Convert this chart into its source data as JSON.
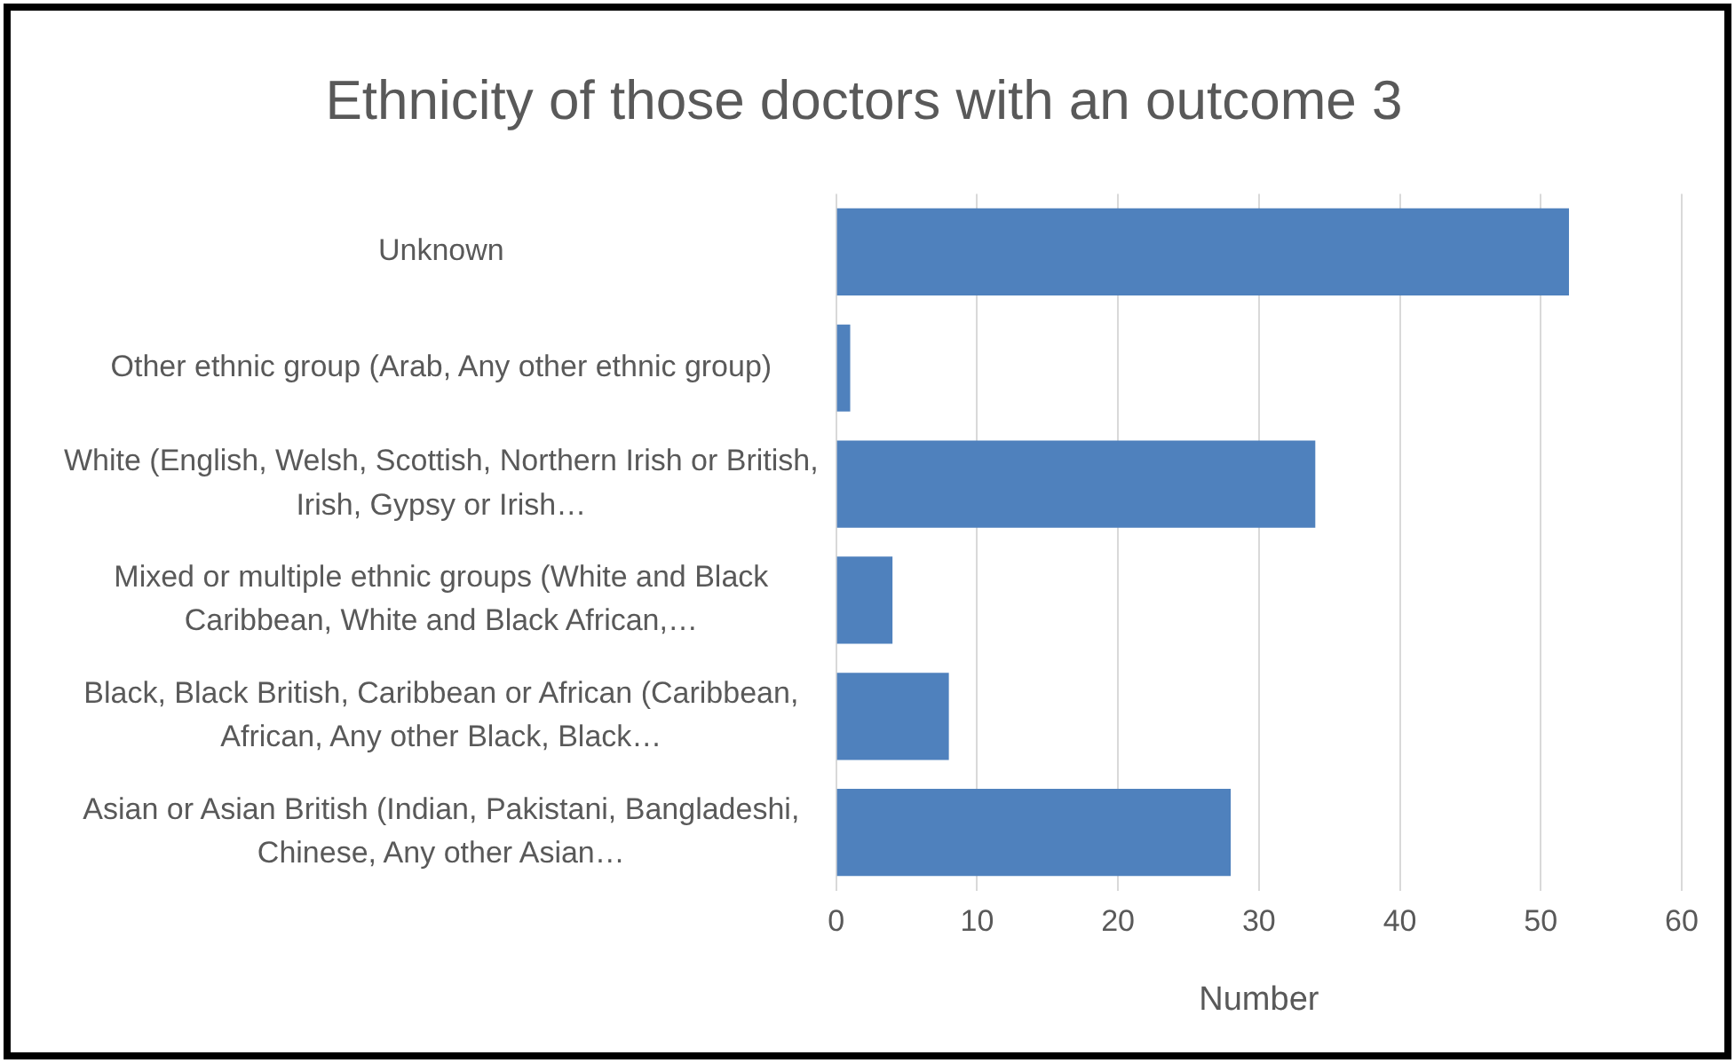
{
  "chart_data": {
    "type": "bar",
    "orientation": "horizontal",
    "title": "Ethnicity of those doctors with an outcome 3",
    "xlabel": "Number",
    "categories": [
      "Unknown",
      "Other ethnic group (Arab, Any other ethnic group)",
      "White (English, Welsh, Scottish, Northern Irish or British, Irish, Gypsy or Irish…",
      "Mixed or multiple ethnic groups (White and Black Caribbean, White and Black African,…",
      "Black, Black British, Caribbean or African (Caribbean, African, Any other Black, Black…",
      "Asian or Asian British (Indian, Pakistani, Bangladeshi, Chinese, Any other Asian…"
    ],
    "values": [
      52,
      1,
      34,
      4,
      8,
      28
    ],
    "color": "#4f81bd",
    "xlim": [
      0,
      60
    ],
    "xticks": [
      0,
      10,
      20,
      30,
      40,
      50,
      60
    ],
    "grid": "x",
    "legend": false
  }
}
